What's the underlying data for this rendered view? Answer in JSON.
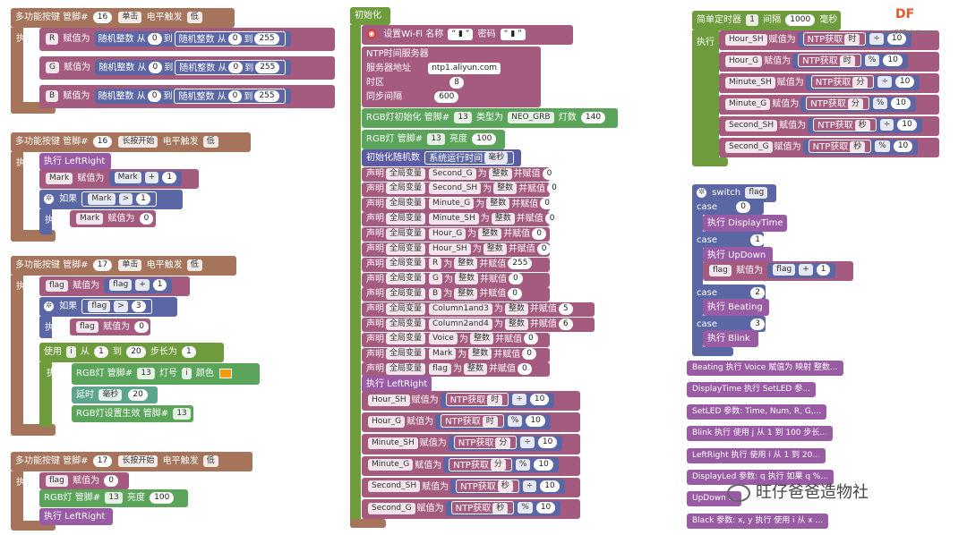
{
  "b1": {
    "head": [
      "多功能按键 管脚#",
      "16",
      "单击",
      "电平触发",
      "低"
    ],
    "exec": "执行",
    "rows": [
      {
        "var": "R",
        "assign": "赋值为",
        "rand1": "随机整数 从",
        "a": "0",
        "to": "到",
        "rand2": "随机整数 从",
        "b": "0",
        "to2": "到",
        "c": "255"
      },
      {
        "var": "G",
        "assign": "赋值为",
        "rand1": "随机整数 从",
        "a": "0",
        "to": "到",
        "rand2": "随机整数 从",
        "b": "0",
        "to2": "到",
        "c": "255"
      },
      {
        "var": "B",
        "assign": "赋值为",
        "rand1": "随机整数 从",
        "a": "0",
        "to": "到",
        "rand2": "随机整数 从",
        "b": "0",
        "to2": "到",
        "c": "255"
      }
    ]
  },
  "b2": {
    "head": [
      "多功能按键 管脚#",
      "16",
      "长按开始",
      "电平触发",
      "低"
    ],
    "exec": "执行",
    "call": "执行 LeftRight",
    "mark": "Mark",
    "assign": "赋值为",
    "op": "+",
    "one": "1",
    "if": "如果",
    "gt": ">",
    "exec2": "执行",
    "zero": "0"
  },
  "b3": {
    "head": [
      "多功能按键 管脚#",
      "17",
      "单击",
      "电平触发",
      "低"
    ],
    "exec": "执行",
    "flag": "flag",
    "assign": "赋值为",
    "op": "+",
    "one": "1",
    "if": "如果",
    "gt": ">",
    "three": "3",
    "exec2": "执行",
    "zero": "0",
    "use": "使用",
    "ivar": "i",
    "from": "从",
    "to": "到",
    "twenty": "20",
    "step": "步长为",
    "exec3": "执行",
    "rgb": "RGB灯 管脚#",
    "pin13": "13",
    "lednum": "灯号",
    "color": "颜色",
    "delay": "延时",
    "ms": "毫秒",
    "d20": "20",
    "show": "RGB灯设置生效 管脚#"
  },
  "b4": {
    "head": [
      "多功能按键 管脚#",
      "17",
      "长按开始",
      "电平触发",
      "低"
    ],
    "exec": "执行",
    "flag": "flag",
    "assign": "赋值为",
    "zero": "0",
    "rgb": "RGB灯 管脚#",
    "pin": "13",
    "bright": "亮度",
    "val": "100",
    "call": "执行 LeftRight"
  },
  "init": {
    "title": "初始化",
    "wifi": "设置Wi-Fi 名称",
    "pwd": "密码",
    "ssid": "“ ▮ ”",
    "pass": "“ ▮ ”",
    "ntp": "NTP时间服务器",
    "server": "服务器地址",
    "server_val": "ntp1.aliyun.com",
    "tz": "时区",
    "tz_val": "8",
    "sync": "同步间隔",
    "sync_val": "600",
    "rgbinit": "RGB灯初始化 管脚#",
    "rgbpin": "13",
    "type": "类型为",
    "type_val": "NEO_GRB",
    "count": "灯数",
    "count_val": "140",
    "rgbb": "RGB灯 管脚#",
    "rgbb_pin": "13",
    "bright": "亮度",
    "bright_val": "100",
    "seed": "初始化随机数",
    "seed_src": "系统运行时间",
    "seed_unit": "毫秒",
    "declare": "声明",
    "global": "全局变量",
    "as": "为",
    "int": "整数",
    "andassign": "并赋值",
    "vars": [
      {
        "name": "Second_G",
        "val": "0"
      },
      {
        "name": "Second_SH",
        "val": "0"
      },
      {
        "name": "Minute_G",
        "val": "0"
      },
      {
        "name": "Minute_SH",
        "val": "0"
      },
      {
        "name": "Hour_G",
        "val": "0"
      },
      {
        "name": "Hour_SH",
        "val": "0"
      },
      {
        "name": "R",
        "val": "255"
      },
      {
        "name": "G",
        "val": "0"
      },
      {
        "name": "B",
        "val": "0"
      },
      {
        "name": "Column1and3",
        "val": "5"
      },
      {
        "name": "Column2and4",
        "val": "6"
      },
      {
        "name": "Voice",
        "val": "0"
      },
      {
        "name": "Mark",
        "val": "0"
      },
      {
        "name": "flag",
        "val": "0"
      }
    ],
    "call": "执行 LeftRight",
    "assigns": [
      {
        "var": "Hour_SH",
        "assign": "赋值为",
        "get": "NTP获取",
        "unit": "时",
        "op": "÷",
        "n": "10"
      },
      {
        "var": "Hour_G",
        "assign": "赋值为",
        "get": "NTP获取",
        "unit": "时",
        "op": "%",
        "n": "10"
      },
      {
        "var": "Minute_SH",
        "assign": "赋值为",
        "get": "NTP获取",
        "unit": "分",
        "op": "÷",
        "n": "10"
      },
      {
        "var": "Minute_G",
        "assign": "赋值为",
        "get": "NTP获取",
        "unit": "分",
        "op": "%",
        "n": "10"
      },
      {
        "var": "Second_SH",
        "assign": "赋值为",
        "get": "NTP获取",
        "unit": "秒",
        "op": "÷",
        "n": "10"
      },
      {
        "var": "Second_G",
        "assign": "赋值为",
        "get": "NTP获取",
        "unit": "秒",
        "op": "%",
        "n": "10"
      }
    ]
  },
  "timer": {
    "title": "简单定时器",
    "id": "1",
    "interval": "间隔",
    "ms": "1000",
    "unit": "毫秒",
    "exec": "执行",
    "assigns": [
      {
        "var": "Hour_SH",
        "assign": "赋值为",
        "get": "NTP获取",
        "unit": "时",
        "op": "÷",
        "n": "10"
      },
      {
        "var": "Hour_G",
        "assign": "赋值为",
        "get": "NTP获取",
        "unit": "时",
        "op": "%",
        "n": "10"
      },
      {
        "var": "Minute_SH",
        "assign": "赋值为",
        "get": "NTP获取",
        "unit": "分",
        "op": "÷",
        "n": "10"
      },
      {
        "var": "Minute_G",
        "assign": "赋值为",
        "get": "NTP获取",
        "unit": "分",
        "op": "%",
        "n": "10"
      },
      {
        "var": "Second_SH",
        "assign": "赋值为",
        "get": "NTP获取",
        "unit": "秒",
        "op": "÷",
        "n": "10"
      },
      {
        "var": "Second_G",
        "assign": "赋值为",
        "get": "NTP获取",
        "unit": "秒",
        "op": "%",
        "n": "10"
      }
    ]
  },
  "sw": {
    "title": "switch",
    "var": "flag",
    "case": "case",
    "c0": "0",
    "e0": "执行 DisplayTime",
    "c1": "1",
    "e1": "执行 UpDown",
    "flag": "flag",
    "assign": "赋值为",
    "op": "+",
    "one": "1",
    "c2": "2",
    "e2": "执行 Beating",
    "c3": "3",
    "e3": "执行 Blink"
  },
  "fns": [
    "Beating 执行 Voice 赋值为 映射 整数...",
    "DisplayTime 执行 SetLED 参...",
    "SetLED 参数: Time, Num, R, G,...",
    "Blink 执行 使用 j 从 1 到 100 步长...",
    "LeftRight 执行 使用 i 从 1 到 20...",
    "DisplayLed 参数: q 执行 如果 q %...",
    "UpDown ...",
    "Black 参数: x, y 执行 使用 i 从 x ..."
  ],
  "logo": {
    "brand": "DF",
    "sub": "mc.DFRobot.com"
  },
  "watermark": "旺仔爸爸造物社"
}
